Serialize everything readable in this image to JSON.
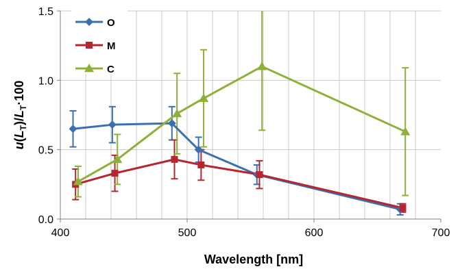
{
  "chart_data": {
    "type": "line",
    "title": "",
    "xlabel": "Wavelength [nm]",
    "ylabel": {
      "u": "u",
      "open": "(",
      "L1": "L",
      "sub1": "T",
      "mid": ")/",
      "L2": "L",
      "sub2": "T",
      "tail": "·100"
    },
    "xlim": [
      400,
      700
    ],
    "ylim": [
      0,
      1.5
    ],
    "xticks": [
      400,
      500,
      600,
      700
    ],
    "xtick_labels": [
      "400",
      "500",
      "600",
      "700"
    ],
    "yticks": [
      0,
      0.5,
      1.0,
      1.5
    ],
    "ytick_labels": [
      "0.0",
      "0.5",
      "1.0",
      "1.5"
    ],
    "grid": true,
    "legend_position": "top-left",
    "series": [
      {
        "name": "O",
        "color": "#3a6fb0",
        "marker": "diamond",
        "x": [
          410,
          441,
          488,
          509,
          555,
          668
        ],
        "y": [
          0.65,
          0.68,
          0.69,
          0.5,
          0.32,
          0.07
        ],
        "err": [
          0.13,
          0.13,
          0.12,
          0.09,
          0.07,
          0.04
        ]
      },
      {
        "name": "M",
        "color": "#b5262f",
        "marker": "square",
        "x": [
          412,
          443,
          490,
          511,
          557,
          670
        ],
        "y": [
          0.25,
          0.33,
          0.43,
          0.39,
          0.32,
          0.08
        ],
        "err": [
          0.11,
          0.13,
          0.14,
          0.11,
          0.1,
          0.03
        ]
      },
      {
        "name": "C",
        "color": "#8db03a",
        "marker": "triangle",
        "x": [
          414,
          445,
          492,
          513,
          559,
          672
        ],
        "y": [
          0.27,
          0.43,
          0.76,
          0.87,
          1.1,
          0.63
        ],
        "err": [
          0.11,
          0.18,
          0.29,
          0.35,
          0.46,
          0.46
        ]
      }
    ]
  }
}
